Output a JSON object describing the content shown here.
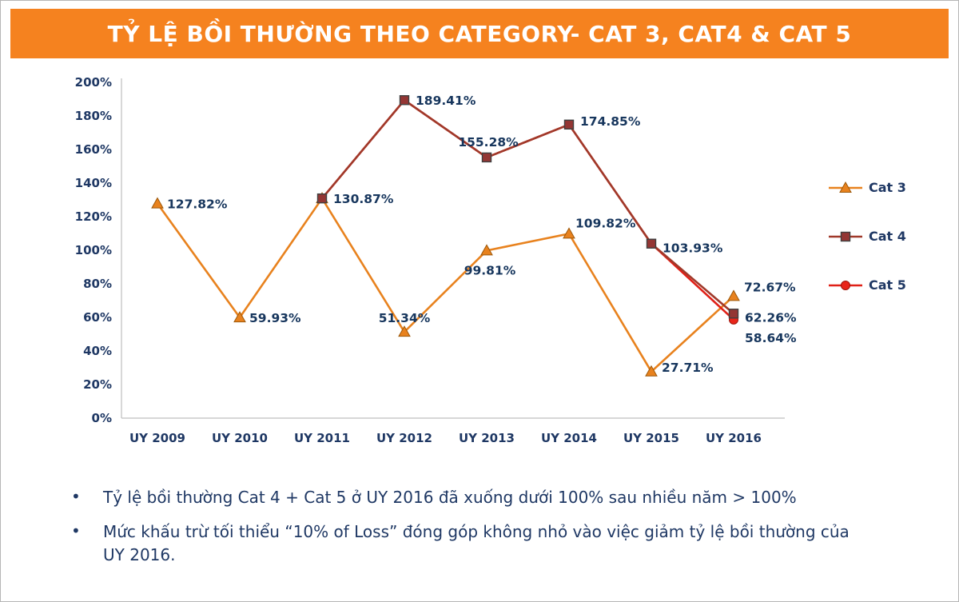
{
  "header": {
    "title": "TỶ LỆ BỒI THƯỜNG THEO CATEGORY- CAT 3, CAT4 & CAT 5"
  },
  "theme": {
    "banner_bg": "#F5821F",
    "text_navy": "#1F3864"
  },
  "chart_data": {
    "type": "line",
    "title": "",
    "categories": [
      "UY 2009",
      "UY 2010",
      "UY 2011",
      "UY 2012",
      "UY 2013",
      "UY 2014",
      "UY 2015",
      "UY 2016"
    ],
    "y_axis": {
      "min": 0,
      "max": 200,
      "step": 20,
      "tick_suffix": "%"
    },
    "grid": false,
    "legend_position": "right",
    "axis_line_color": "#BFBFBF",
    "series": [
      {
        "name": "Cat 3",
        "color": "#E8821E",
        "marker": "triangle",
        "marker_fill": "#E8821E",
        "marker_stroke": "#9C5708",
        "values": [
          127.82,
          59.93,
          130.87,
          51.34,
          99.81,
          109.82,
          27.71,
          72.67
        ],
        "label_offsets": [
          [
            12,
            6,
            "s"
          ],
          [
            12,
            6,
            "s"
          ],
          null,
          [
            0,
            -12,
            "m"
          ],
          [
            4,
            30,
            "m"
          ],
          [
            8,
            -8,
            "s"
          ],
          [
            13,
            0,
            "s"
          ],
          [
            13,
            -6,
            "s"
          ]
        ]
      },
      {
        "name": "Cat 4",
        "color": "#A0392A",
        "marker": "square",
        "marker_fill": "#943634",
        "marker_stroke": "#404040",
        "values": [
          null,
          null,
          130.87,
          189.41,
          155.28,
          174.85,
          103.93,
          62.26
        ],
        "label_offsets": [
          null,
          null,
          [
            14,
            6,
            "s"
          ],
          [
            14,
            6,
            "s"
          ],
          [
            2,
            -14,
            "m"
          ],
          [
            14,
            1,
            "s"
          ],
          [
            14,
            11,
            "s"
          ],
          [
            14,
            10,
            "s"
          ]
        ]
      },
      {
        "name": "Cat 5",
        "color": "#E02017",
        "marker": "circle",
        "marker_fill": "#E8251A",
        "marker_stroke": "#9C1208",
        "values": [
          null,
          null,
          130.87,
          189.41,
          155.28,
          174.85,
          103.93,
          58.64
        ],
        "label_offsets": [
          null,
          null,
          null,
          null,
          null,
          null,
          null,
          [
            14,
            28,
            "s"
          ]
        ]
      }
    ]
  },
  "bullets": {
    "items": [
      {
        "text": "Tỷ lệ bồi thường Cat 4 + Cat 5 ở UY 2016 đã xuống dưới 100% sau nhiều năm > 100%"
      },
      {
        "text": "Mức khấu trừ tối thiểu “10% of Loss” đóng góp không nhỏ vào việc giảm tỷ lệ bồi thường của UY 2016."
      }
    ]
  }
}
